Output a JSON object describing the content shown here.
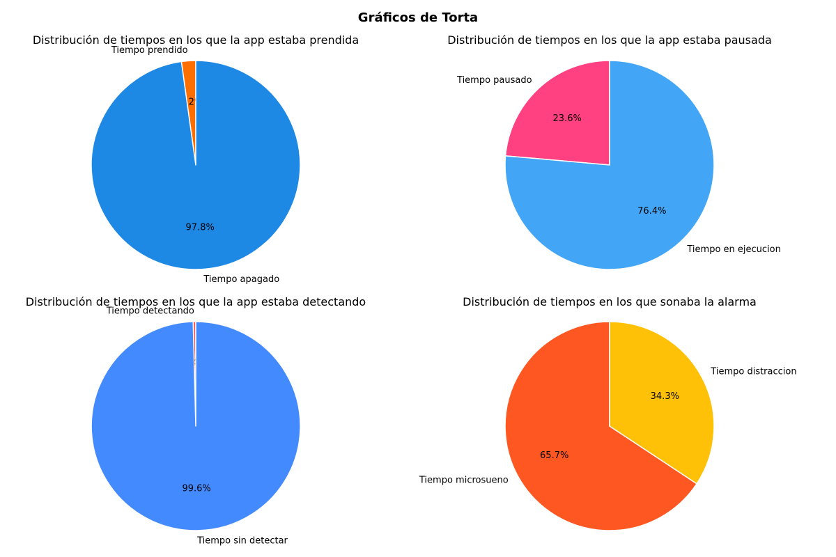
{
  "figure": {
    "title": "Gráficos de Torta"
  },
  "chart_data": [
    {
      "type": "pie",
      "title": "Distribución de tiempos en los que la app estaba prendida",
      "labels": [
        "Tiempo prendido",
        "Tiempo apagado"
      ],
      "values": [
        2.2,
        97.8
      ],
      "value_labels": [
        "2.2%",
        "97.8%"
      ],
      "colors": [
        "#ff6f00",
        "#1e88e5"
      ],
      "start_angle_deg": 90,
      "direction": "counterclockwise"
    },
    {
      "type": "pie",
      "title": "Distribución de tiempos en los que la app estaba pausada",
      "labels": [
        "Tiempo pausado",
        "Tiempo en ejecucion"
      ],
      "values": [
        23.6,
        76.4
      ],
      "value_labels": [
        "23.6%",
        "76.4%"
      ],
      "colors": [
        "#ff4081",
        "#42a5f5"
      ],
      "start_angle_deg": 90,
      "direction": "counterclockwise"
    },
    {
      "type": "pie",
      "title": "Distribución de tiempos en los que la app estaba detectando",
      "labels": [
        "Tiempo detectando",
        "Tiempo sin detectar"
      ],
      "values": [
        0.4,
        99.6
      ],
      "value_labels": [
        "0.4%",
        "99.6%"
      ],
      "colors": [
        "#ff5252",
        "#448aff"
      ],
      "start_angle_deg": 90,
      "direction": "counterclockwise"
    },
    {
      "type": "pie",
      "title": "Distribución de tiempos en los que sonaba la alarma",
      "labels": [
        "Tiempo microsueno",
        "Tiempo distraccion"
      ],
      "values": [
        65.7,
        34.3
      ],
      "value_labels": [
        "65.7%",
        "34.3%"
      ],
      "colors": [
        "#ff5722",
        "#ffc107"
      ],
      "start_angle_deg": 90,
      "direction": "counterclockwise"
    }
  ]
}
